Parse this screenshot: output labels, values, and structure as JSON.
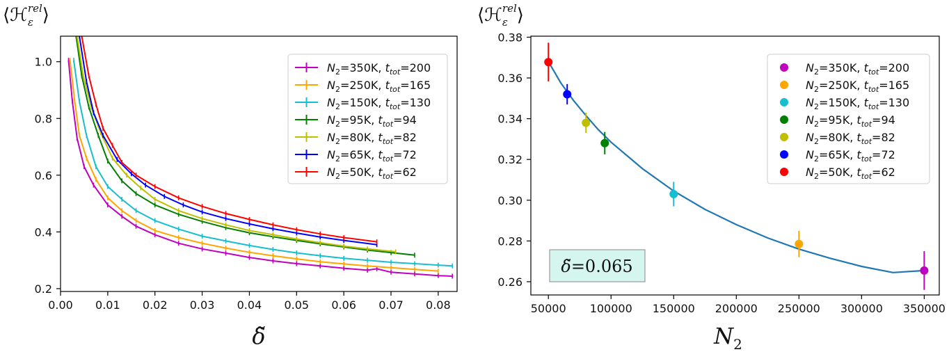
{
  "chart_data": [
    {
      "type": "line",
      "ylabel": "⟨ℋε^rel⟩",
      "ylabel_main": "⟨ℋ",
      "ylabel_sub": "ε",
      "ylabel_sup": "rel",
      "ylabel_close": "⟩",
      "xlabel": "δ̃",
      "xlim": [
        0,
        0.084
      ],
      "ylim": [
        0.19,
        1.09
      ],
      "xticks": [
        "0.00",
        "0.01",
        "0.02",
        "0.03",
        "0.04",
        "0.05",
        "0.06",
        "0.07",
        "0.08"
      ],
      "yticks": [
        "0.2",
        "0.4",
        "0.6",
        "0.8",
        "1.0"
      ],
      "legend_position": "upper right",
      "series": [
        {
          "name": "N2=350K, ttot=200",
          "n": "350K",
          "t": "200",
          "color": "#bf00bf",
          "x": [
            0.0017,
            0.0025,
            0.0035,
            0.005,
            0.007,
            0.01,
            0.013,
            0.016,
            0.02,
            0.025,
            0.03,
            0.035,
            0.04,
            0.045,
            0.05,
            0.055,
            0.06,
            0.065,
            0.067,
            0.07,
            0.075,
            0.08,
            0.083
          ],
          "y": [
            1.005,
            0.86,
            0.73,
            0.63,
            0.565,
            0.495,
            0.455,
            0.42,
            0.39,
            0.36,
            0.34,
            0.325,
            0.31,
            0.298,
            0.288,
            0.28,
            0.272,
            0.265,
            0.27,
            0.258,
            0.252,
            0.246,
            0.244
          ]
        },
        {
          "name": "N2=250K, ttot=165",
          "n": "250K",
          "t": "165",
          "color": "#ffa500",
          "x": [
            0.002,
            0.003,
            0.004,
            0.0055,
            0.0075,
            0.01,
            0.013,
            0.016,
            0.02,
            0.025,
            0.03,
            0.035,
            0.04,
            0.045,
            0.05,
            0.055,
            0.06,
            0.065,
            0.07,
            0.075,
            0.08
          ],
          "y": [
            1.005,
            0.86,
            0.74,
            0.66,
            0.585,
            0.52,
            0.475,
            0.44,
            0.405,
            0.38,
            0.36,
            0.343,
            0.328,
            0.316,
            0.305,
            0.295,
            0.287,
            0.28,
            0.274,
            0.268,
            0.262
          ]
        },
        {
          "name": "N2=150K, ttot=130",
          "n": "150K",
          "t": "130",
          "color": "#17becf",
          "x": [
            0.0028,
            0.004,
            0.0055,
            0.0075,
            0.01,
            0.013,
            0.016,
            0.02,
            0.025,
            0.03,
            0.035,
            0.04,
            0.045,
            0.05,
            0.055,
            0.06,
            0.065,
            0.07,
            0.075,
            0.08,
            0.083
          ],
          "y": [
            1.005,
            0.86,
            0.74,
            0.63,
            0.56,
            0.515,
            0.475,
            0.44,
            0.41,
            0.385,
            0.368,
            0.352,
            0.338,
            0.326,
            0.316,
            0.307,
            0.3,
            0.293,
            0.288,
            0.283,
            0.28
          ]
        },
        {
          "name": "N2=95K, ttot=94",
          "n": "95K",
          "t": "94",
          "color": "#007f00",
          "x": [
            0.0033,
            0.0045,
            0.006,
            0.008,
            0.01,
            0.013,
            0.016,
            0.02,
            0.025,
            0.03,
            0.035,
            0.04,
            0.045,
            0.05,
            0.055,
            0.06,
            0.065,
            0.07,
            0.075
          ],
          "y": [
            1.09,
            0.95,
            0.84,
            0.74,
            0.65,
            0.58,
            0.535,
            0.495,
            0.462,
            0.437,
            0.415,
            0.397,
            0.383,
            0.37,
            0.358,
            0.347,
            0.336,
            0.327,
            0.318
          ]
        },
        {
          "name": "N2=80K, ttot=82",
          "n": "80K",
          "t": "82",
          "color": "#bfbf00",
          "x": [
            0.0035,
            0.0048,
            0.0065,
            0.0085,
            0.011,
            0.014,
            0.017,
            0.02,
            0.025,
            0.03,
            0.035,
            0.04,
            0.045,
            0.05,
            0.055,
            0.06,
            0.065,
            0.071
          ],
          "y": [
            1.09,
            0.95,
            0.84,
            0.75,
            0.66,
            0.6,
            0.555,
            0.515,
            0.475,
            0.447,
            0.425,
            0.405,
            0.39,
            0.375,
            0.362,
            0.35,
            0.34,
            0.33
          ]
        },
        {
          "name": "N2=65K, ttot=72",
          "n": "65K",
          "t": "72",
          "color": "#0000ff",
          "x": [
            0.004,
            0.0055,
            0.007,
            0.009,
            0.012,
            0.015,
            0.018,
            0.022,
            0.026,
            0.03,
            0.035,
            0.04,
            0.045,
            0.05,
            0.055,
            0.06,
            0.067
          ],
          "y": [
            1.09,
            0.93,
            0.82,
            0.74,
            0.655,
            0.605,
            0.565,
            0.525,
            0.495,
            0.47,
            0.447,
            0.428,
            0.411,
            0.396,
            0.382,
            0.37,
            0.355
          ]
        },
        {
          "name": "N2=50K, ttot=62",
          "n": "50K",
          "t": "62",
          "color": "#ff0000",
          "x": [
            0.0045,
            0.006,
            0.0075,
            0.009,
            0.011,
            0.013,
            0.016,
            0.02,
            0.025,
            0.03,
            0.035,
            0.04,
            0.045,
            0.05,
            0.055,
            0.06,
            0.067
          ],
          "y": [
            1.09,
            0.95,
            0.85,
            0.765,
            0.705,
            0.645,
            0.6,
            0.56,
            0.52,
            0.49,
            0.465,
            0.444,
            0.425,
            0.408,
            0.393,
            0.38,
            0.365
          ]
        }
      ]
    },
    {
      "type": "scatter",
      "ylabel": "⟨ℋε^rel⟩",
      "ylabel_main": "⟨ℋ",
      "ylabel_sub": "ε",
      "ylabel_sup": "rel",
      "ylabel_close": "⟩",
      "xlabel": "N2",
      "xlabel_main": "N",
      "xlabel_sub": "2",
      "xlim": [
        36000,
        362000
      ],
      "ylim": [
        0.2535,
        0.3805
      ],
      "xticks": [
        50000,
        100000,
        150000,
        200000,
        250000,
        300000,
        350000
      ],
      "yticks": [
        "0.26",
        "0.28",
        "0.30",
        "0.32",
        "0.34",
        "0.36",
        "0.38"
      ],
      "legend_position": "upper right",
      "annotation": "δ̃ = 0.065",
      "annotation_main": "δ̃",
      "annotation_value": "=0.065",
      "fit_color": "#1f77b4",
      "fit_curve": {
        "x": [
          50000,
          60000,
          70000,
          80000,
          90000,
          100000,
          125000,
          150000,
          175000,
          200000,
          225000,
          250000,
          275000,
          300000,
          325000,
          350000
        ],
        "y": [
          0.368,
          0.3575,
          0.349,
          0.3415,
          0.3345,
          0.3285,
          0.3155,
          0.3045,
          0.2955,
          0.288,
          0.2815,
          0.276,
          0.2715,
          0.2675,
          0.2645,
          0.2655
        ]
      },
      "points": [
        {
          "name": "N2=350K, ttot=200",
          "n": "350K",
          "t": "200",
          "color": "#bf00bf",
          "x": 350000,
          "y": 0.2655,
          "err": 0.0095
        },
        {
          "name": "N2=250K, ttot=165",
          "n": "250K",
          "t": "165",
          "color": "#ffa500",
          "x": 250000,
          "y": 0.2785,
          "err": 0.0065
        },
        {
          "name": "N2=150K, ttot=130",
          "n": "150K",
          "t": "130",
          "color": "#17becf",
          "x": 150000,
          "y": 0.303,
          "err": 0.006
        },
        {
          "name": "N2=95K, ttot=94",
          "n": "95K",
          "t": "94",
          "color": "#007f00",
          "x": 95000,
          "y": 0.328,
          "err": 0.0055
        },
        {
          "name": "N2=80K, ttot=82",
          "n": "80K",
          "t": "82",
          "color": "#bfbf00",
          "x": 80000,
          "y": 0.338,
          "err": 0.005
        },
        {
          "name": "N2=65K, ttot=72",
          "n": "65K",
          "t": "72",
          "color": "#0000ff",
          "x": 65000,
          "y": 0.352,
          "err": 0.005
        },
        {
          "name": "N2=50K, ttot=62",
          "n": "50K",
          "t": "62",
          "color": "#ff0000",
          "x": 50000,
          "y": 0.3678,
          "err": 0.0095
        }
      ]
    }
  ]
}
